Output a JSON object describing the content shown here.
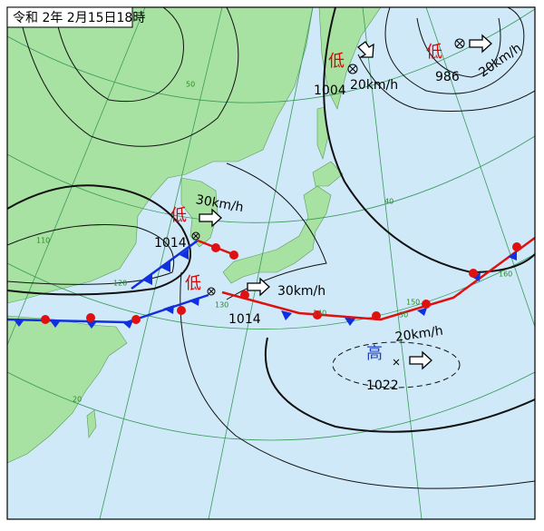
{
  "header": {
    "title": "令和 2年 2月15日18時"
  },
  "systems": [
    {
      "label": "低",
      "pressure": 1004,
      "speed": "20km/h"
    },
    {
      "label": "低",
      "pressure": 986,
      "speed": "20km/h"
    },
    {
      "label": "低",
      "pressure": 1014,
      "speed": "30km/h"
    },
    {
      "label": "低",
      "pressure": 1014,
      "speed": "30km/h"
    },
    {
      "label": "高",
      "pressure": 1022,
      "speed": "20km/h"
    }
  ],
  "grid_labels": [
    "50",
    "40",
    "30",
    "20",
    "110",
    "120",
    "130",
    "140",
    "150",
    "160"
  ]
}
